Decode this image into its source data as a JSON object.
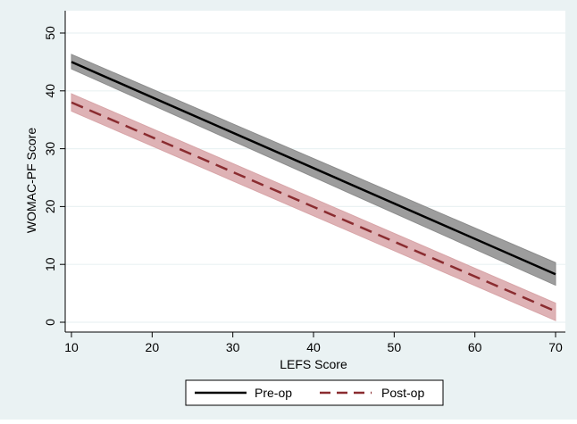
{
  "chart_data": {
    "type": "line",
    "xlabel": "LEFS Score",
    "ylabel": "WOMAC-PF Score",
    "xlim": [
      10,
      70
    ],
    "ylim": [
      0,
      50
    ],
    "xticks": [
      10,
      20,
      30,
      40,
      50,
      60,
      70
    ],
    "yticks": [
      0,
      10,
      20,
      30,
      40,
      50
    ],
    "grid": true,
    "legend_position": "bottom-center",
    "series": [
      {
        "name": "Pre-op",
        "style": "solid",
        "color": "#000000",
        "band_color": "#8c8c8c",
        "x": [
          10,
          70
        ],
        "y": [
          45.0,
          8.3
        ],
        "ci_lower": [
          43.8,
          6.4
        ],
        "ci_upper": [
          46.3,
          10.3
        ]
      },
      {
        "name": "Post-op",
        "style": "dashed",
        "color": "#8a2c30",
        "band_color": "#d8a5a8",
        "x": [
          10,
          70
        ],
        "y": [
          38.0,
          1.9
        ],
        "ci_lower": [
          36.5,
          0.3
        ],
        "ci_upper": [
          39.5,
          3.3
        ]
      }
    ]
  },
  "colors": {
    "outer_background": "#eaf2f3",
    "plot_background": "#ffffff",
    "grid": "#eaf2f3"
  }
}
